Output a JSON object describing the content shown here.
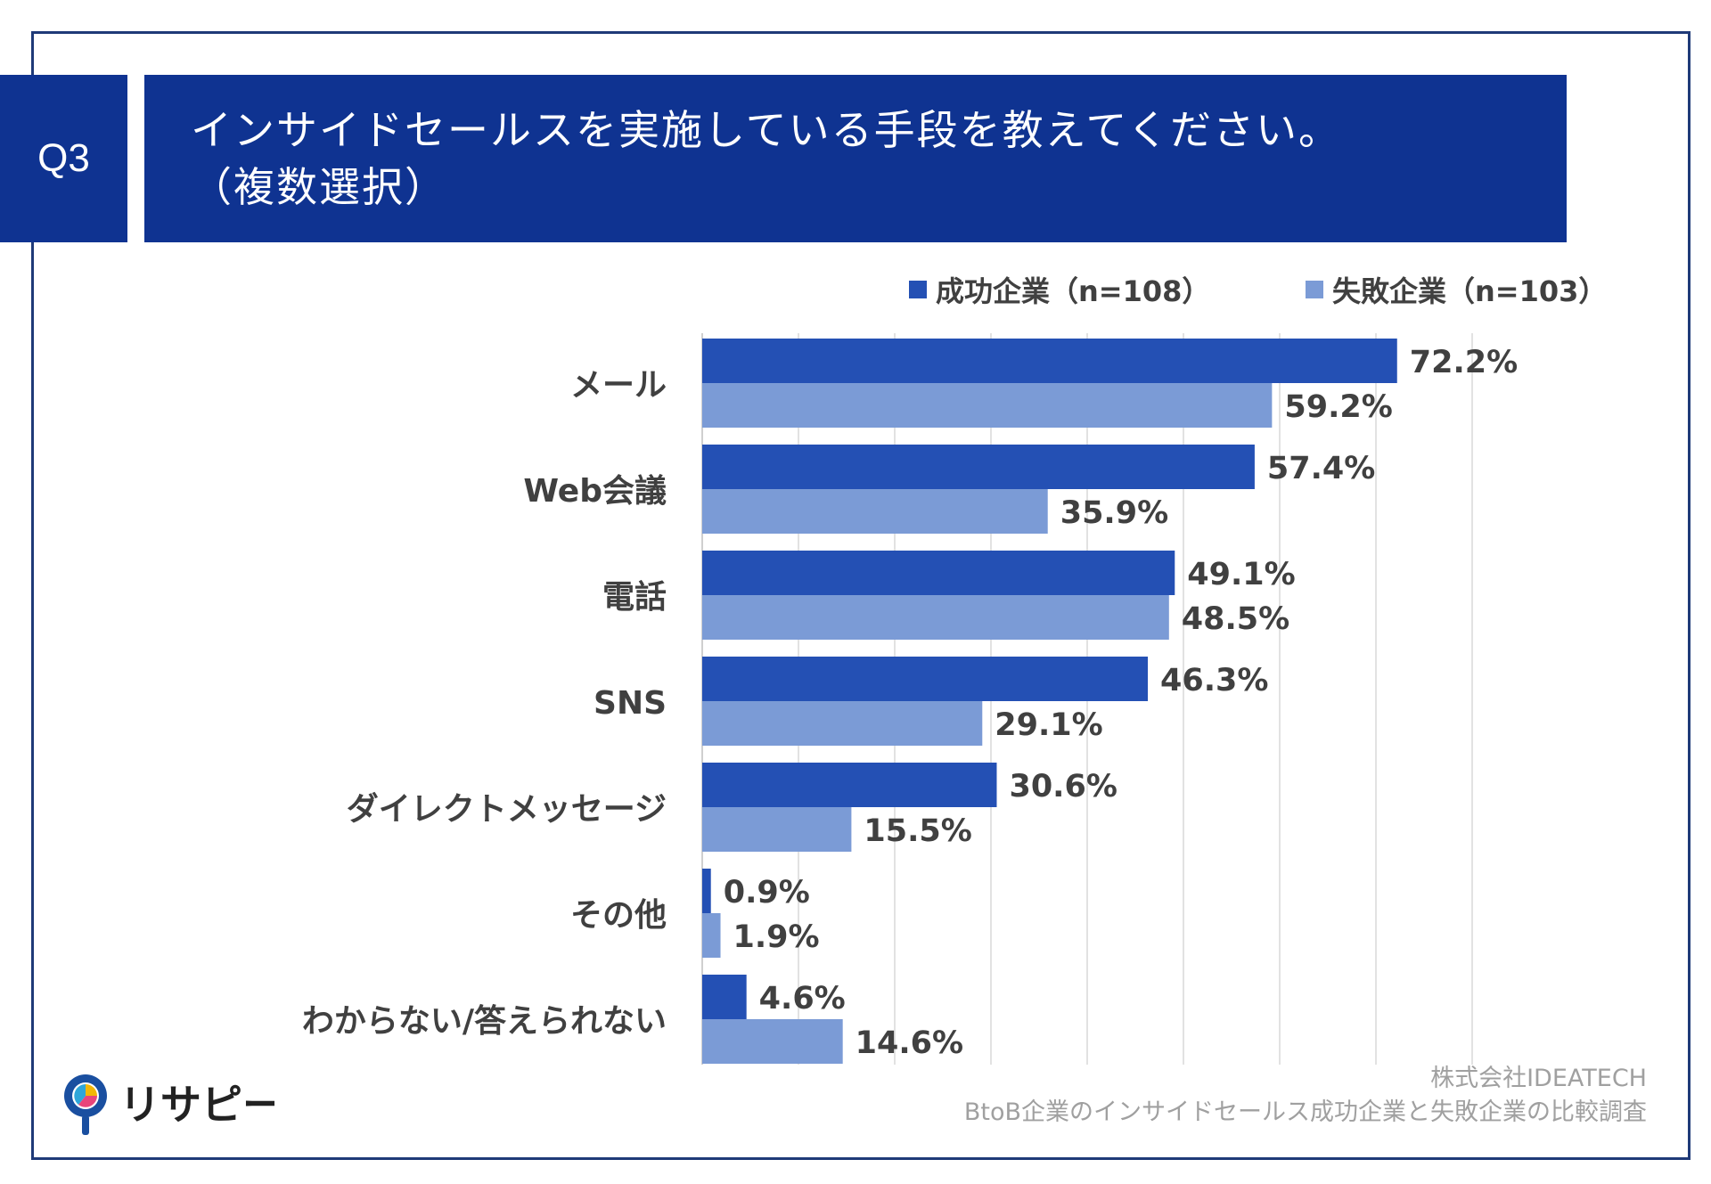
{
  "header": {
    "question_label": "Q3",
    "title_line1": "インサイドセールスを実施している手段を教えてください。",
    "title_line2": "（複数選択）"
  },
  "footer": {
    "company": "株式会社IDEATECH",
    "survey": "BtoB企業のインサイドセールス成功企業と失敗企業の比較調査"
  },
  "logo": {
    "text": "リサピー",
    "icon": "map-pin-pie-icon"
  },
  "colors": {
    "header_bg": "#0f3391",
    "success": "#2450b4",
    "failure": "#7b9bd6",
    "grid": "#d9d9d9"
  },
  "chart_data": {
    "type": "bar",
    "orientation": "horizontal",
    "categories": [
      "メール",
      "Web会議",
      "電話",
      "SNS",
      "ダイレクトメッセージ",
      "その他",
      "わからない/答えられない"
    ],
    "series": [
      {
        "name": "成功企業（n=108）",
        "values": [
          72.2,
          57.4,
          49.1,
          46.3,
          30.6,
          0.9,
          4.6
        ],
        "labels": [
          "72.2%",
          "57.4%",
          "49.1%",
          "46.3%",
          "30.6%",
          "0.9%",
          "4.6%"
        ]
      },
      {
        "name": "失敗企業（n=103）",
        "values": [
          59.2,
          35.9,
          48.5,
          29.1,
          15.5,
          1.9,
          14.6
        ],
        "labels": [
          "59.2%",
          "35.9%",
          "48.5%",
          "29.1%",
          "15.5%",
          "1.9%",
          "14.6%"
        ]
      }
    ],
    "xlim": [
      0,
      80
    ],
    "grid_step": 10,
    "unit": "%",
    "legend_position": "top-right"
  }
}
